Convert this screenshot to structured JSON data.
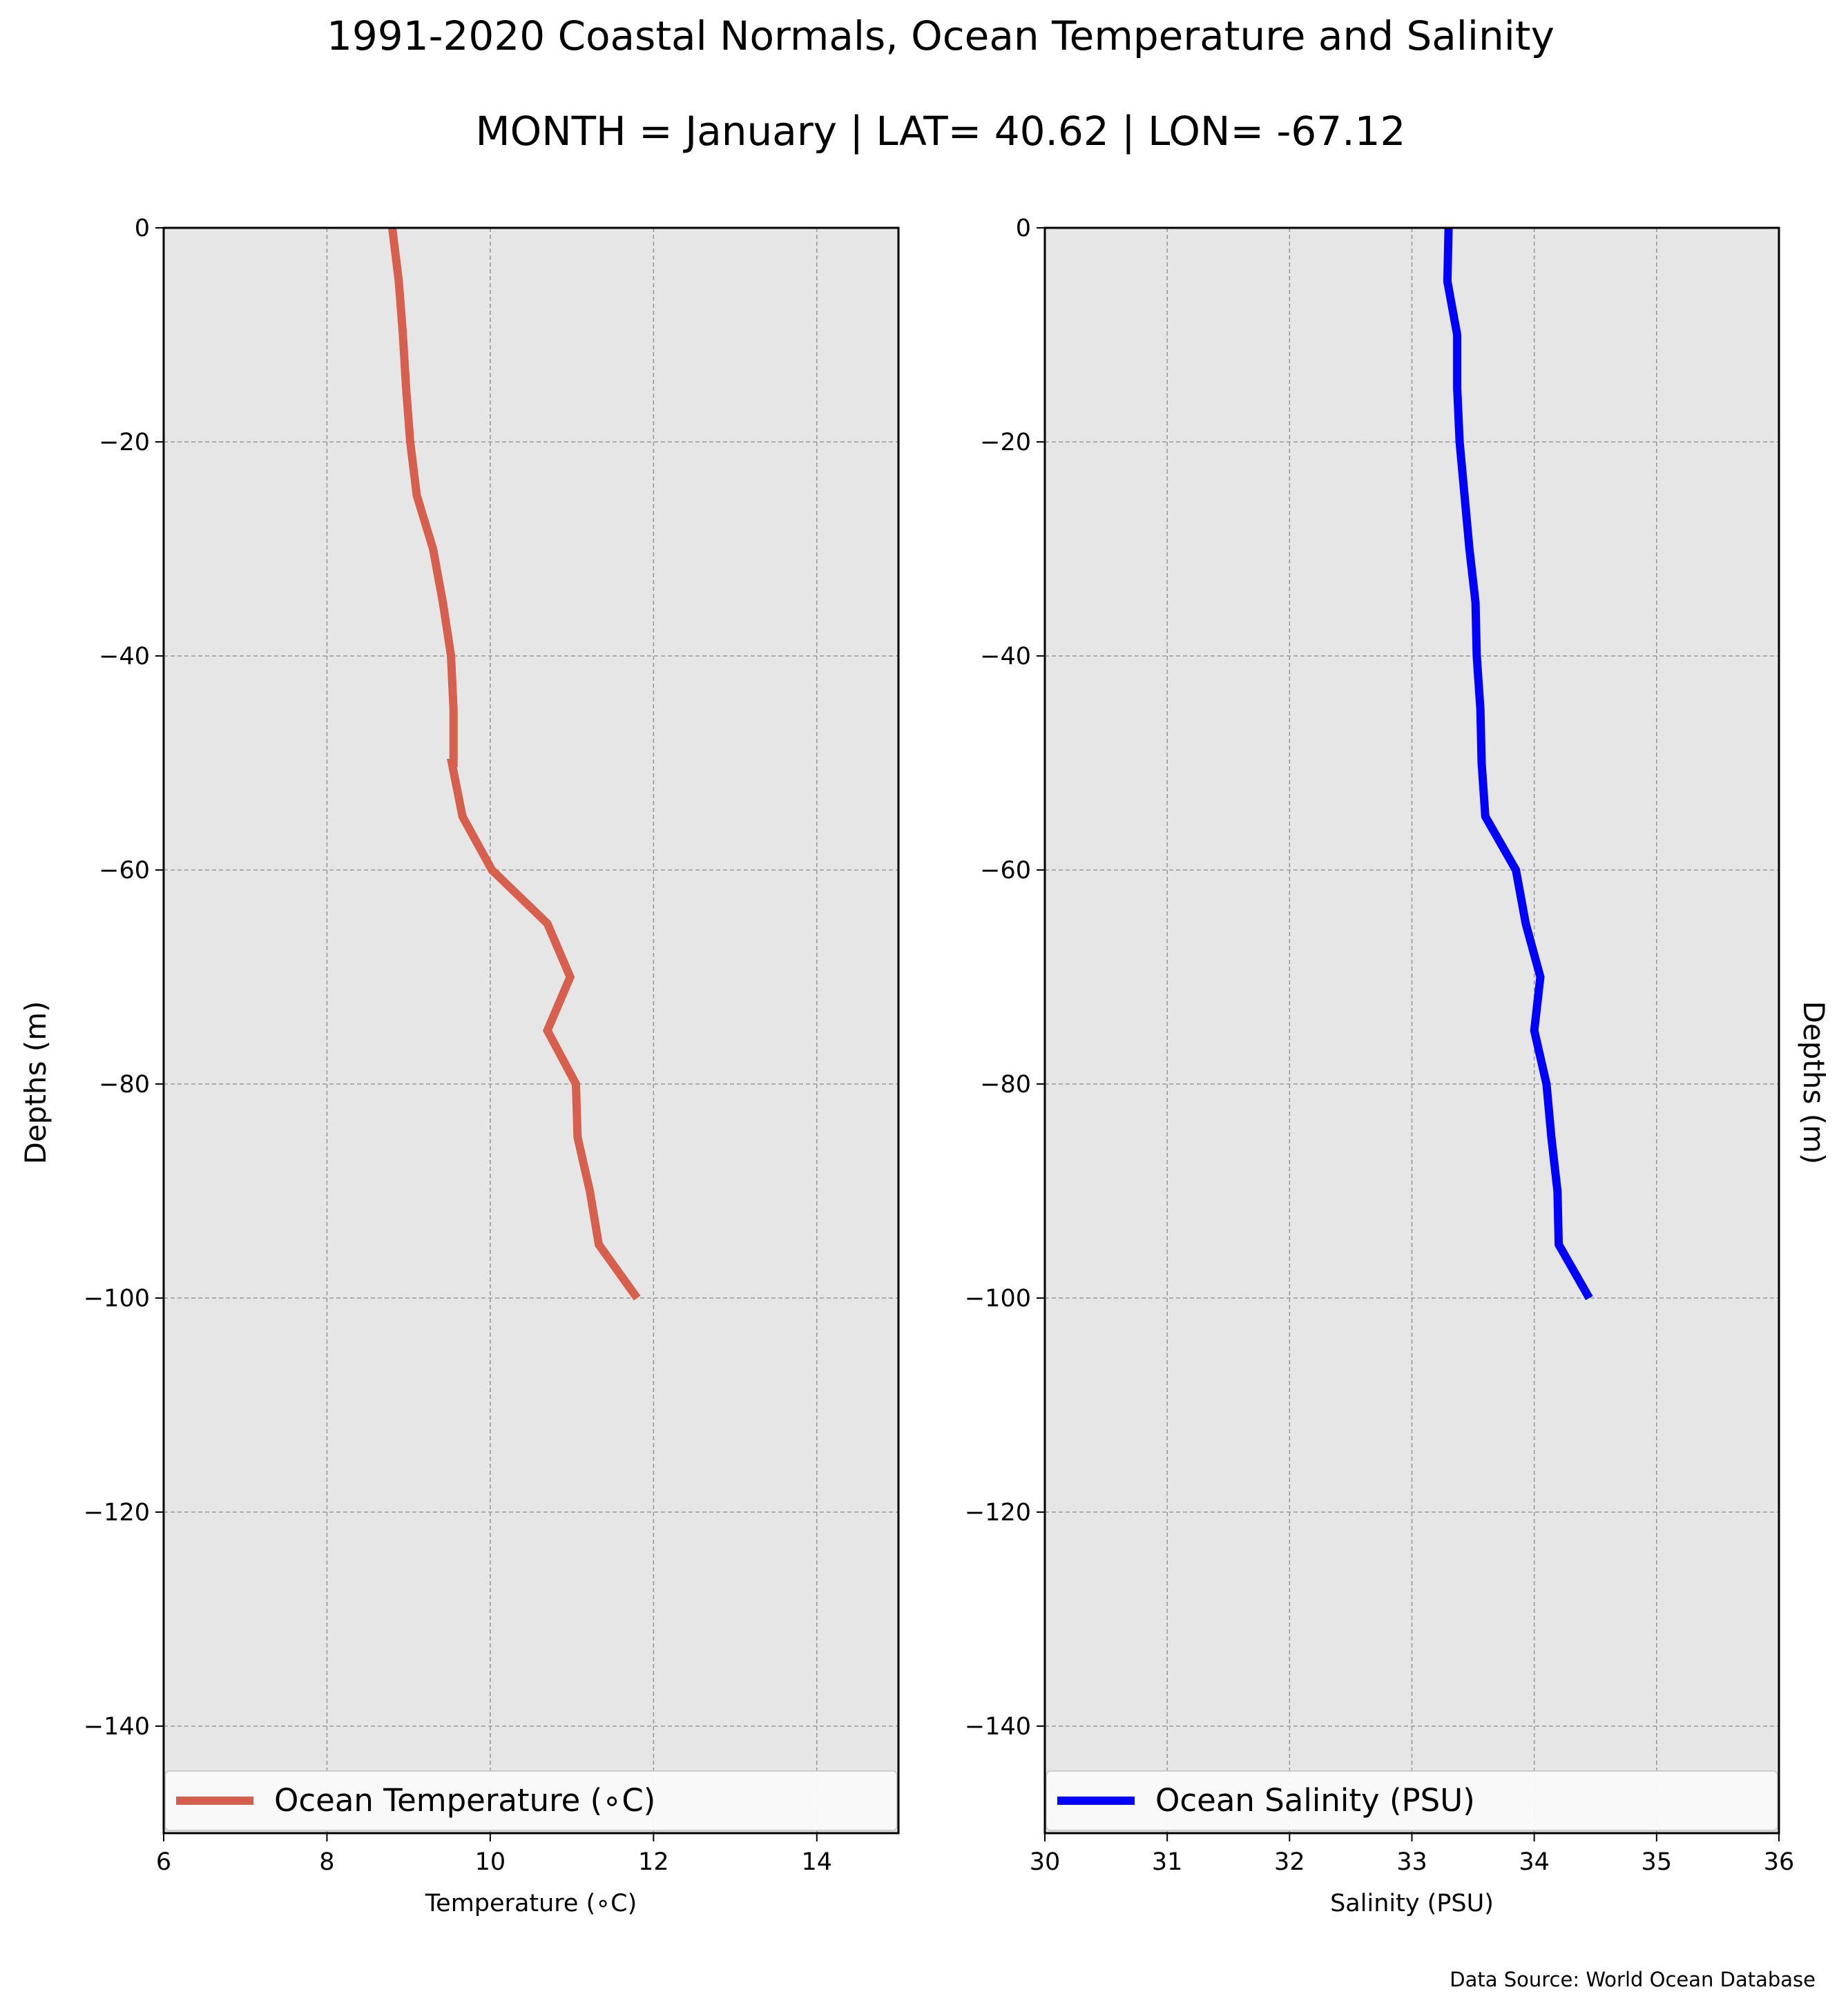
{
  "title": "1991-2020 Coastal Normals, Ocean Temperature and Salinity",
  "subtitle": "MONTH = January | LAT= 40.62 | LON= -67.12",
  "source_note": "Data Source: World Ocean Database",
  "chart_data": [
    {
      "type": "line",
      "title": "",
      "xlabel": "Temperature (∘C)",
      "ylabel": "Depths (m)",
      "xlim": [
        6,
        15
      ],
      "ylim": [
        -150,
        0
      ],
      "xticks": [
        6,
        8,
        10,
        12,
        14
      ],
      "yticks": [
        0,
        -20,
        -40,
        -60,
        -80,
        -100,
        -120,
        -140
      ],
      "xtick_labels": [
        "6",
        "8",
        "10",
        "12",
        "14"
      ],
      "ytick_labels": [
        "0",
        "−20",
        "−40",
        "−60",
        "−80",
        "−100",
        "−120",
        "−140"
      ],
      "grid": true,
      "legend": "bottom",
      "background": "#e6e6e6",
      "series": [
        {
          "name": "Ocean Temperature (∘C)",
          "color": "#d6604d",
          "x": [
            8.8,
            8.88,
            8.93,
            8.97,
            9.02,
            9.1,
            9.3,
            9.42,
            9.52,
            9.55,
            9.55,
            9.53,
            9.66,
            10.02,
            10.7,
            10.98,
            10.7,
            11.05,
            11.07,
            11.22,
            11.33,
            11.8
          ],
          "y": [
            0,
            -5,
            -10,
            -15,
            -20,
            -25,
            -30,
            -35,
            -40,
            -45,
            -50,
            -50,
            -55,
            -60,
            -65,
            -70,
            -75,
            -80,
            -85,
            -90,
            -95,
            -100
          ]
        }
      ]
    },
    {
      "type": "line",
      "title": "",
      "xlabel": "Salinity (PSU)",
      "ylabel": "Depths (m)",
      "xlim": [
        30,
        36
      ],
      "ylim": [
        -150,
        0
      ],
      "xticks": [
        30,
        31,
        32,
        33,
        34,
        35,
        36
      ],
      "yticks": [
        0,
        -20,
        -40,
        -60,
        -80,
        -100,
        -120,
        -140
      ],
      "xtick_labels": [
        "30",
        "31",
        "32",
        "33",
        "34",
        "35",
        "36"
      ],
      "ytick_labels": [
        "0",
        "−20",
        "−40",
        "−60",
        "−80",
        "−100",
        "−120",
        "−140"
      ],
      "grid": true,
      "legend": "bottom",
      "background": "#e6e6e6",
      "series": [
        {
          "name": "Ocean Salinity (PSU)",
          "color": "#0000ff",
          "x": [
            33.3,
            33.29,
            33.37,
            33.37,
            33.39,
            33.43,
            33.47,
            33.52,
            33.53,
            33.56,
            33.57,
            33.6,
            33.85,
            33.93,
            34.05,
            34.0,
            34.1,
            34.14,
            34.19,
            34.2,
            34.45
          ],
          "y": [
            0,
            -5,
            -10,
            -15,
            -20,
            -25,
            -30,
            -35,
            -40,
            -45,
            -50,
            -55,
            -60,
            -65,
            -70,
            -75,
            -80,
            -85,
            -90,
            -95,
            -100
          ]
        }
      ]
    }
  ]
}
